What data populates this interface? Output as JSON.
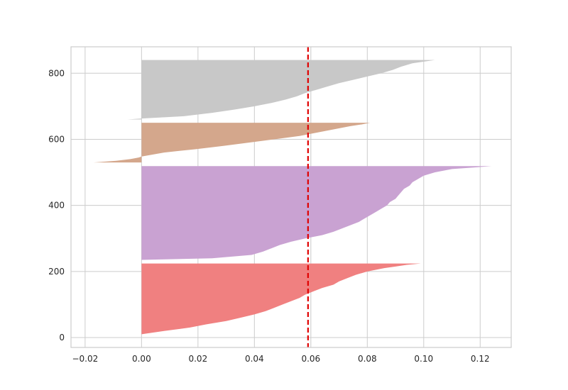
{
  "chart_data": {
    "type": "area",
    "title": "",
    "xlabel": "",
    "ylabel": "",
    "xlim": [
      -0.025,
      0.131
    ],
    "ylim": [
      -30,
      880
    ],
    "x_ticks": [
      -0.02,
      0.0,
      0.02,
      0.04,
      0.06,
      0.08,
      0.1,
      0.12
    ],
    "x_tick_labels": [
      "−0.02",
      "0.00",
      "0.02",
      "0.04",
      "0.06",
      "0.08",
      "0.10",
      "0.12"
    ],
    "y_ticks": [
      0,
      200,
      400,
      600,
      800
    ],
    "y_tick_labels": [
      "0",
      "200",
      "400",
      "600",
      "800"
    ],
    "grid": true,
    "series": [
      {
        "color": "#f08080",
        "profile": [
          [
            10,
            0.0
          ],
          [
            20,
            0.008
          ],
          [
            30,
            0.017
          ],
          [
            40,
            0.023
          ],
          [
            50,
            0.03
          ],
          [
            60,
            0.035
          ],
          [
            70,
            0.04
          ],
          [
            80,
            0.044
          ],
          [
            90,
            0.047
          ],
          [
            100,
            0.05
          ],
          [
            110,
            0.053
          ],
          [
            120,
            0.056
          ],
          [
            130,
            0.058
          ],
          [
            140,
            0.061
          ],
          [
            150,
            0.064
          ],
          [
            160,
            0.068
          ],
          [
            170,
            0.07
          ],
          [
            180,
            0.073
          ],
          [
            190,
            0.076
          ],
          [
            200,
            0.08
          ],
          [
            210,
            0.086
          ],
          [
            215,
            0.09
          ],
          [
            220,
            0.094
          ],
          [
            224,
            0.099
          ]
        ]
      },
      {
        "color": "#c9a2d2",
        "profile": [
          [
            235,
            0.0
          ],
          [
            240,
            0.025
          ],
          [
            250,
            0.039
          ],
          [
            260,
            0.043
          ],
          [
            270,
            0.046
          ],
          [
            280,
            0.049
          ],
          [
            290,
            0.053
          ],
          [
            300,
            0.058
          ],
          [
            310,
            0.064
          ],
          [
            320,
            0.068
          ],
          [
            330,
            0.071
          ],
          [
            340,
            0.074
          ],
          [
            350,
            0.077
          ],
          [
            360,
            0.079
          ],
          [
            370,
            0.081
          ],
          [
            380,
            0.083
          ],
          [
            390,
            0.085
          ],
          [
            400,
            0.087
          ],
          [
            410,
            0.088
          ],
          [
            420,
            0.09
          ],
          [
            430,
            0.091
          ],
          [
            440,
            0.092
          ],
          [
            450,
            0.093
          ],
          [
            460,
            0.095
          ],
          [
            470,
            0.096
          ],
          [
            480,
            0.098
          ],
          [
            490,
            0.1
          ],
          [
            500,
            0.104
          ],
          [
            510,
            0.11
          ],
          [
            515,
            0.118
          ],
          [
            519,
            0.124
          ]
        ]
      },
      {
        "color": "#d4a78c",
        "profile": [
          [
            530,
            -0.017
          ],
          [
            535,
            -0.009
          ],
          [
            540,
            -0.004
          ],
          [
            545,
            -0.001
          ],
          [
            548,
            0.0
          ],
          [
            560,
            0.008
          ],
          [
            570,
            0.019
          ],
          [
            580,
            0.029
          ],
          [
            590,
            0.038
          ],
          [
            600,
            0.047
          ],
          [
            610,
            0.056
          ],
          [
            620,
            0.062
          ],
          [
            630,
            0.068
          ],
          [
            640,
            0.074
          ],
          [
            645,
            0.078
          ],
          [
            650,
            0.081
          ]
        ]
      },
      {
        "color": "#c8c8c8",
        "profile": [
          [
            660,
            -0.005
          ],
          [
            663,
            0.0
          ],
          [
            670,
            0.015
          ],
          [
            680,
            0.025
          ],
          [
            690,
            0.033
          ],
          [
            700,
            0.04
          ],
          [
            710,
            0.046
          ],
          [
            720,
            0.051
          ],
          [
            730,
            0.055
          ],
          [
            740,
            0.058
          ],
          [
            750,
            0.062
          ],
          [
            760,
            0.066
          ],
          [
            770,
            0.07
          ],
          [
            780,
            0.075
          ],
          [
            790,
            0.08
          ],
          [
            800,
            0.085
          ],
          [
            810,
            0.089
          ],
          [
            820,
            0.092
          ],
          [
            830,
            0.096
          ],
          [
            840,
            0.104
          ]
        ]
      }
    ],
    "average_line": {
      "x": 0.059,
      "color": "#e00000",
      "style": "dashed"
    }
  }
}
